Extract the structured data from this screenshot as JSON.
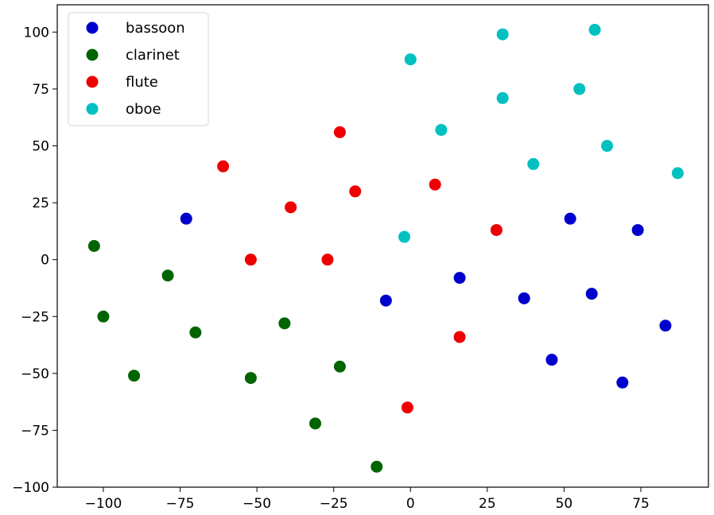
{
  "chart_data": {
    "type": "scatter",
    "title": "",
    "xlabel": "",
    "ylabel": "",
    "xlim": [
      -115,
      97
    ],
    "ylim": [
      -100,
      112
    ],
    "xticks": [
      -100,
      -75,
      -50,
      -25,
      0,
      25,
      50,
      75
    ],
    "yticks": [
      -100,
      -75,
      -50,
      -25,
      0,
      25,
      50,
      75,
      100
    ],
    "xtick_labels": [
      "−100",
      "−75",
      "−50",
      "−25",
      "0",
      "25",
      "50",
      "75"
    ],
    "ytick_labels": [
      "−100",
      "−75",
      "−50",
      "−25",
      "0",
      "25",
      "50",
      "75",
      "100"
    ],
    "grid": false,
    "legend_position": "top-left",
    "series": [
      {
        "name": "bassoon",
        "color": "#0000cc",
        "x": [
          -73,
          -8,
          16,
          37,
          46,
          52,
          59,
          69,
          74,
          83
        ],
        "y": [
          18,
          -18,
          -8,
          -17,
          -44,
          18,
          -15,
          -54,
          13,
          -29
        ]
      },
      {
        "name": "clarinet",
        "color": "#006400",
        "x": [
          -103,
          -100,
          -90,
          -79,
          -70,
          -52,
          -41,
          -31,
          -23,
          -11
        ],
        "y": [
          6,
          -25,
          -51,
          -7,
          -32,
          -52,
          -28,
          -72,
          -47,
          -91
        ]
      },
      {
        "name": "flute",
        "color": "#ee0000",
        "x": [
          -61,
          -52,
          -39,
          -27,
          -23,
          -18,
          -1,
          8,
          16,
          28
        ],
        "y": [
          41,
          0,
          23,
          0,
          56,
          30,
          -65,
          33,
          -34,
          13
        ]
      },
      {
        "name": "oboe",
        "color": "#00c0c0",
        "x": [
          -2,
          0,
          10,
          30,
          30,
          40,
          55,
          60,
          64,
          87
        ],
        "y": [
          10,
          88,
          57,
          71,
          99,
          42,
          75,
          101,
          50,
          38
        ]
      }
    ]
  }
}
